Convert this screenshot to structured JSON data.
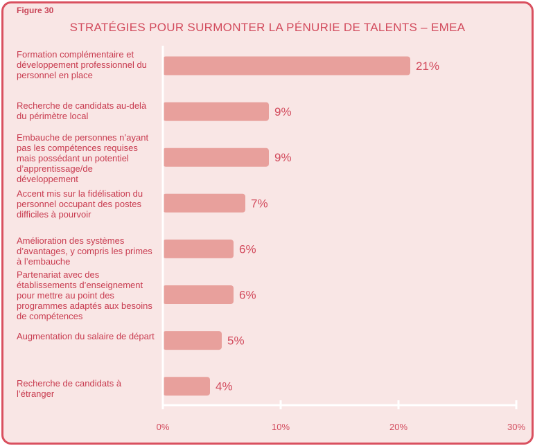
{
  "figure_label": "Figure 30",
  "chart_data": {
    "type": "bar",
    "orientation": "horizontal",
    "title": "STRATÉGIES POUR SURMONTER LA PÉNURIE DE TALENTS – EMEA",
    "categories": [
      "Formation complémentaire et développement professionnel du personnel en place",
      "Recherche de candidats au-delà du périmètre local",
      "Embauche de personnes n’ayant pas les compétences requises mais possédant un potentiel d’apprentissage/de développement",
      "Accent mis sur la fidélisation du personnel occupant des postes difficiles à pourvoir",
      "Amélioration des systèmes d’avantages, y compris les primes à l’embauche",
      "Partenariat avec des établissements d’enseignement pour mettre au point des programmes adaptés aux besoins de compétences",
      "Augmentation du salaire de départ",
      "Recherche de candidats à l’étranger"
    ],
    "values": [
      21,
      9,
      9,
      7,
      6,
      6,
      5,
      4
    ],
    "value_labels": [
      "21%",
      "9%",
      "9%",
      "7%",
      "6%",
      "6%",
      "5%",
      "4%"
    ],
    "xlim": [
      0,
      30
    ],
    "x_ticks": [
      "0%",
      "10%",
      "20%",
      "30%"
    ],
    "grid": false,
    "colors": {
      "bar": "#e8a09c",
      "text": "#d24a5c",
      "axis": "#ffffff",
      "frame": "#d9505f",
      "background": "#f9e6e5"
    }
  }
}
